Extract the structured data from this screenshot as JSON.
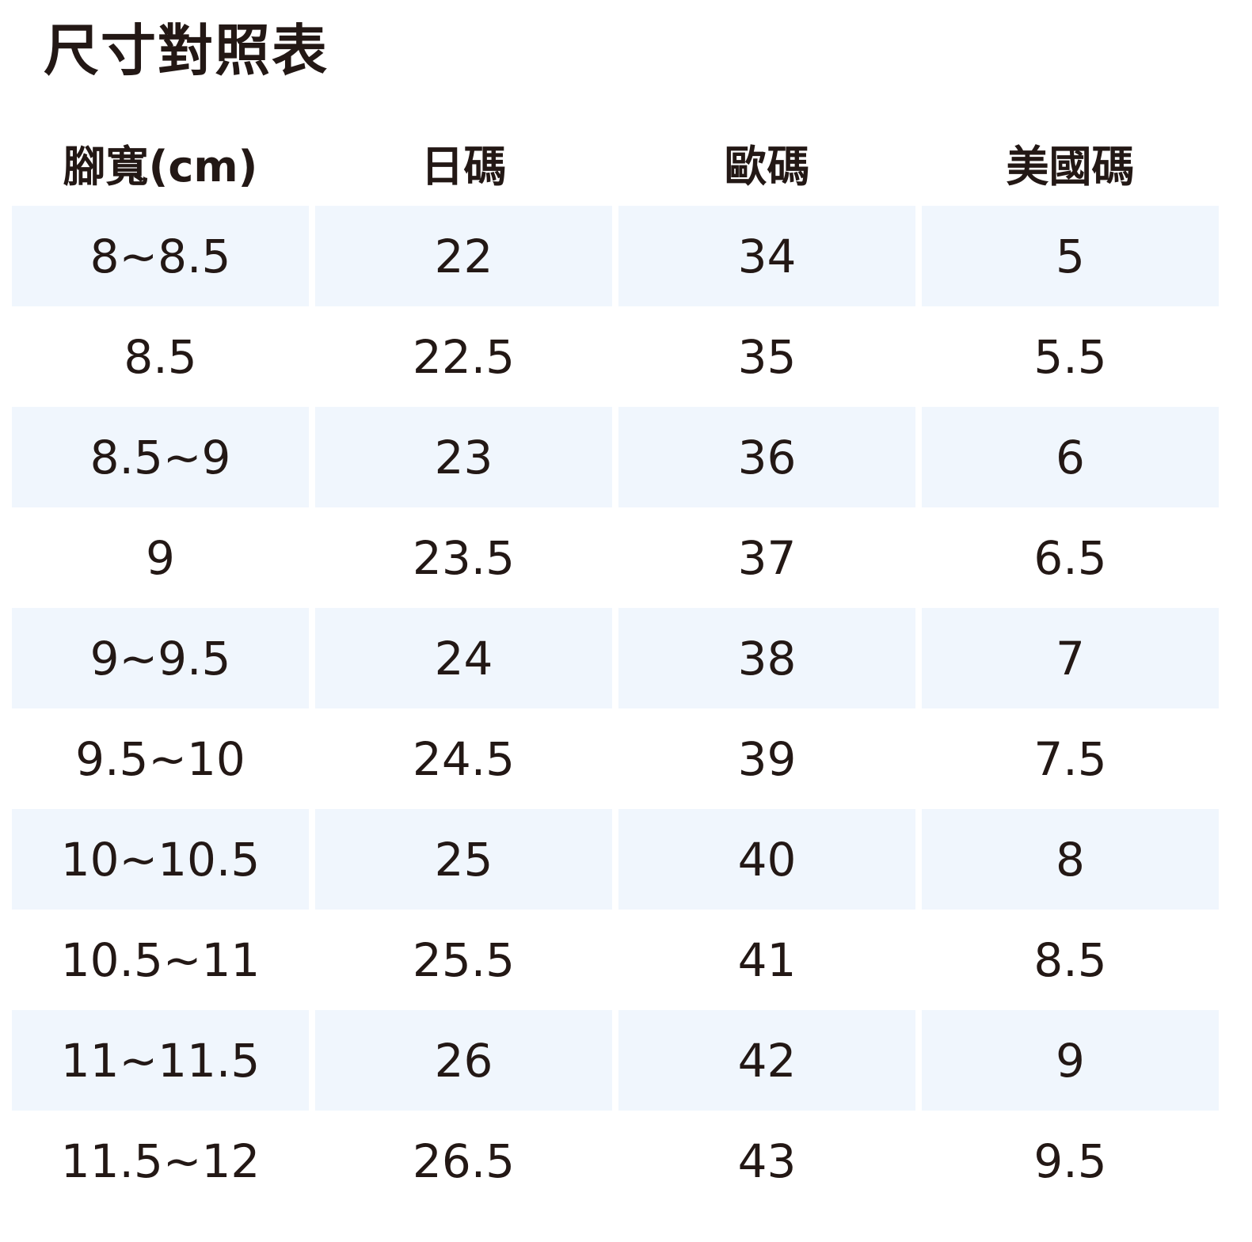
{
  "title": "尺寸對照表",
  "colors": {
    "text": "#231815",
    "row_shade": "#f0f6fd"
  },
  "headers": [
    "腳寬(cm)",
    "日碼",
    "歐碼",
    "美國碼"
  ],
  "rows": [
    [
      "8~8.5",
      "22",
      "34",
      "5"
    ],
    [
      "8.5",
      "22.5",
      "35",
      "5.5"
    ],
    [
      "8.5~9",
      "23",
      "36",
      "6"
    ],
    [
      "9",
      "23.5",
      "37",
      "6.5"
    ],
    [
      "9~9.5",
      "24",
      "38",
      "7"
    ],
    [
      "9.5~10",
      "24.5",
      "39",
      "7.5"
    ],
    [
      "10~10.5",
      "25",
      "40",
      "8"
    ],
    [
      "10.5~11",
      "25.5",
      "41",
      "8.5"
    ],
    [
      "11~11.5",
      "26",
      "42",
      "9"
    ],
    [
      "11.5~12",
      "26.5",
      "43",
      "9.5"
    ]
  ]
}
